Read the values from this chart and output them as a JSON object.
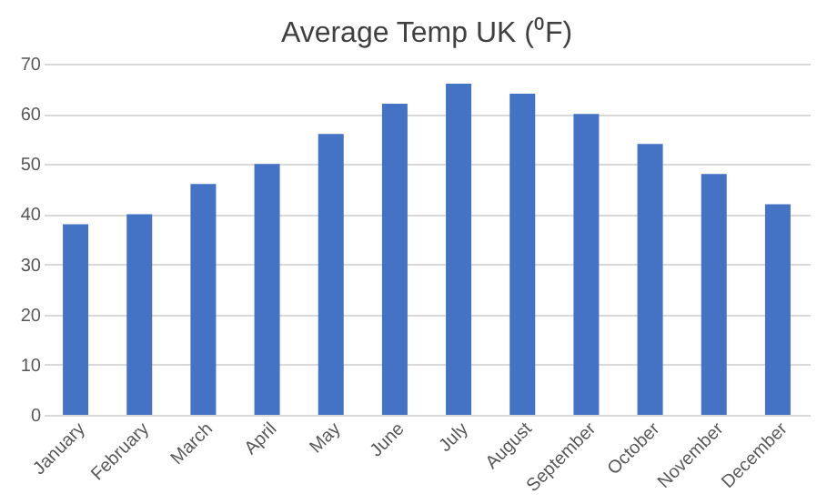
{
  "chart_data": {
    "type": "bar",
    "title": "Average Temp UK (⁰F)",
    "categories": [
      "January",
      "February",
      "March",
      "April",
      "May",
      "June",
      "July",
      "August",
      "September",
      "October",
      "November",
      "December"
    ],
    "values": [
      38,
      40,
      46,
      50,
      56,
      62,
      66,
      64,
      60,
      54,
      48,
      42
    ],
    "color": "#4472c4",
    "ylim": [
      0,
      70
    ],
    "yticks": [
      0,
      10,
      20,
      30,
      40,
      50,
      60,
      70
    ],
    "grid": "y"
  }
}
